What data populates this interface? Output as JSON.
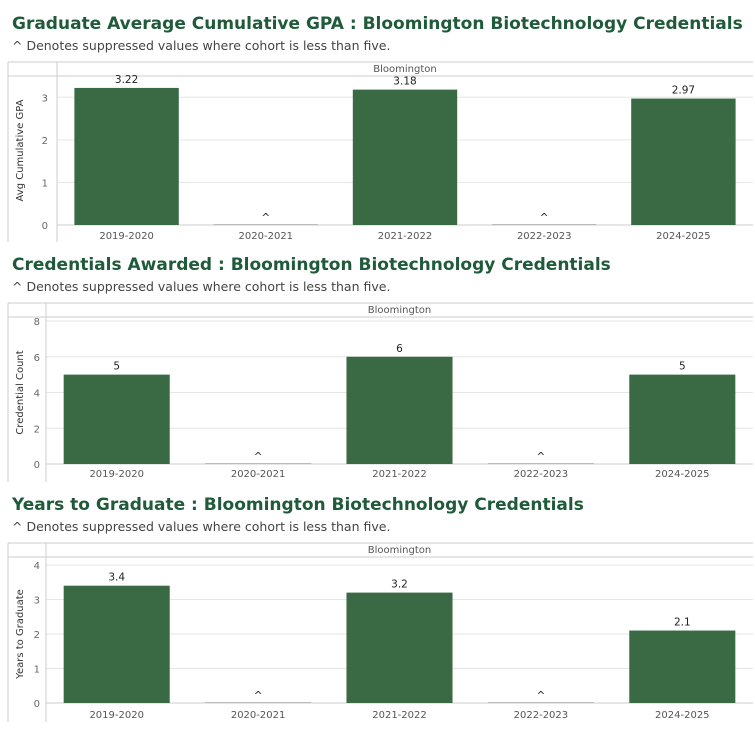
{
  "colors": {
    "bar": "#3a6a44",
    "title": "#1f5a3a",
    "grid": "#e6e6e6",
    "axis": "#cccccc"
  },
  "chart_data": [
    {
      "type": "bar",
      "title": "Graduate Average Cumulative GPA : Bloomington Biotechnology Credentials",
      "subtitle": "^ Denotes suppressed values where cohort is less than five.",
      "facet": "Bloomington",
      "ylabel": "Avg Cumulative GPA",
      "xlabel": "",
      "ylim": [
        0,
        3.5
      ],
      "yticks": [
        0,
        1,
        2,
        3
      ],
      "categories": [
        "2019-2020",
        "2020-2021",
        "2021-2022",
        "2022-2023",
        "2024-2025"
      ],
      "values": [
        3.22,
        null,
        3.18,
        null,
        2.97
      ],
      "labels": [
        "3.22",
        "^",
        "3.18",
        "^",
        "2.97"
      ]
    },
    {
      "type": "bar",
      "title": "Credentials Awarded : Bloomington Biotechnology Credentials",
      "subtitle": "^ Denotes suppressed values where cohort is less than five.",
      "facet": "Bloomington",
      "ylabel": "Credential Count",
      "xlabel": "",
      "ylim": [
        0,
        8
      ],
      "yticks": [
        0,
        2,
        4,
        6,
        8
      ],
      "categories": [
        "2019-2020",
        "2020-2021",
        "2021-2022",
        "2022-2023",
        "2024-2025"
      ],
      "values": [
        5,
        null,
        6,
        null,
        5
      ],
      "labels": [
        "5",
        "^",
        "6",
        "^",
        "5"
      ]
    },
    {
      "type": "bar",
      "title": "Years to Graduate : Bloomington Biotechnology Credentials",
      "subtitle": "^ Denotes suppressed values where cohort is less than five.",
      "facet": "Bloomington",
      "ylabel": "Years to Graduate",
      "xlabel": "",
      "ylim": [
        0,
        4
      ],
      "yticks": [
        0,
        1,
        2,
        3,
        4
      ],
      "categories": [
        "2019-2020",
        "2020-2021",
        "2021-2022",
        "2022-2023",
        "2024-2025"
      ],
      "values": [
        3.4,
        null,
        3.2,
        null,
        2.1
      ],
      "labels": [
        "3.4",
        "^",
        "3.2",
        "^",
        "2.1"
      ]
    }
  ]
}
